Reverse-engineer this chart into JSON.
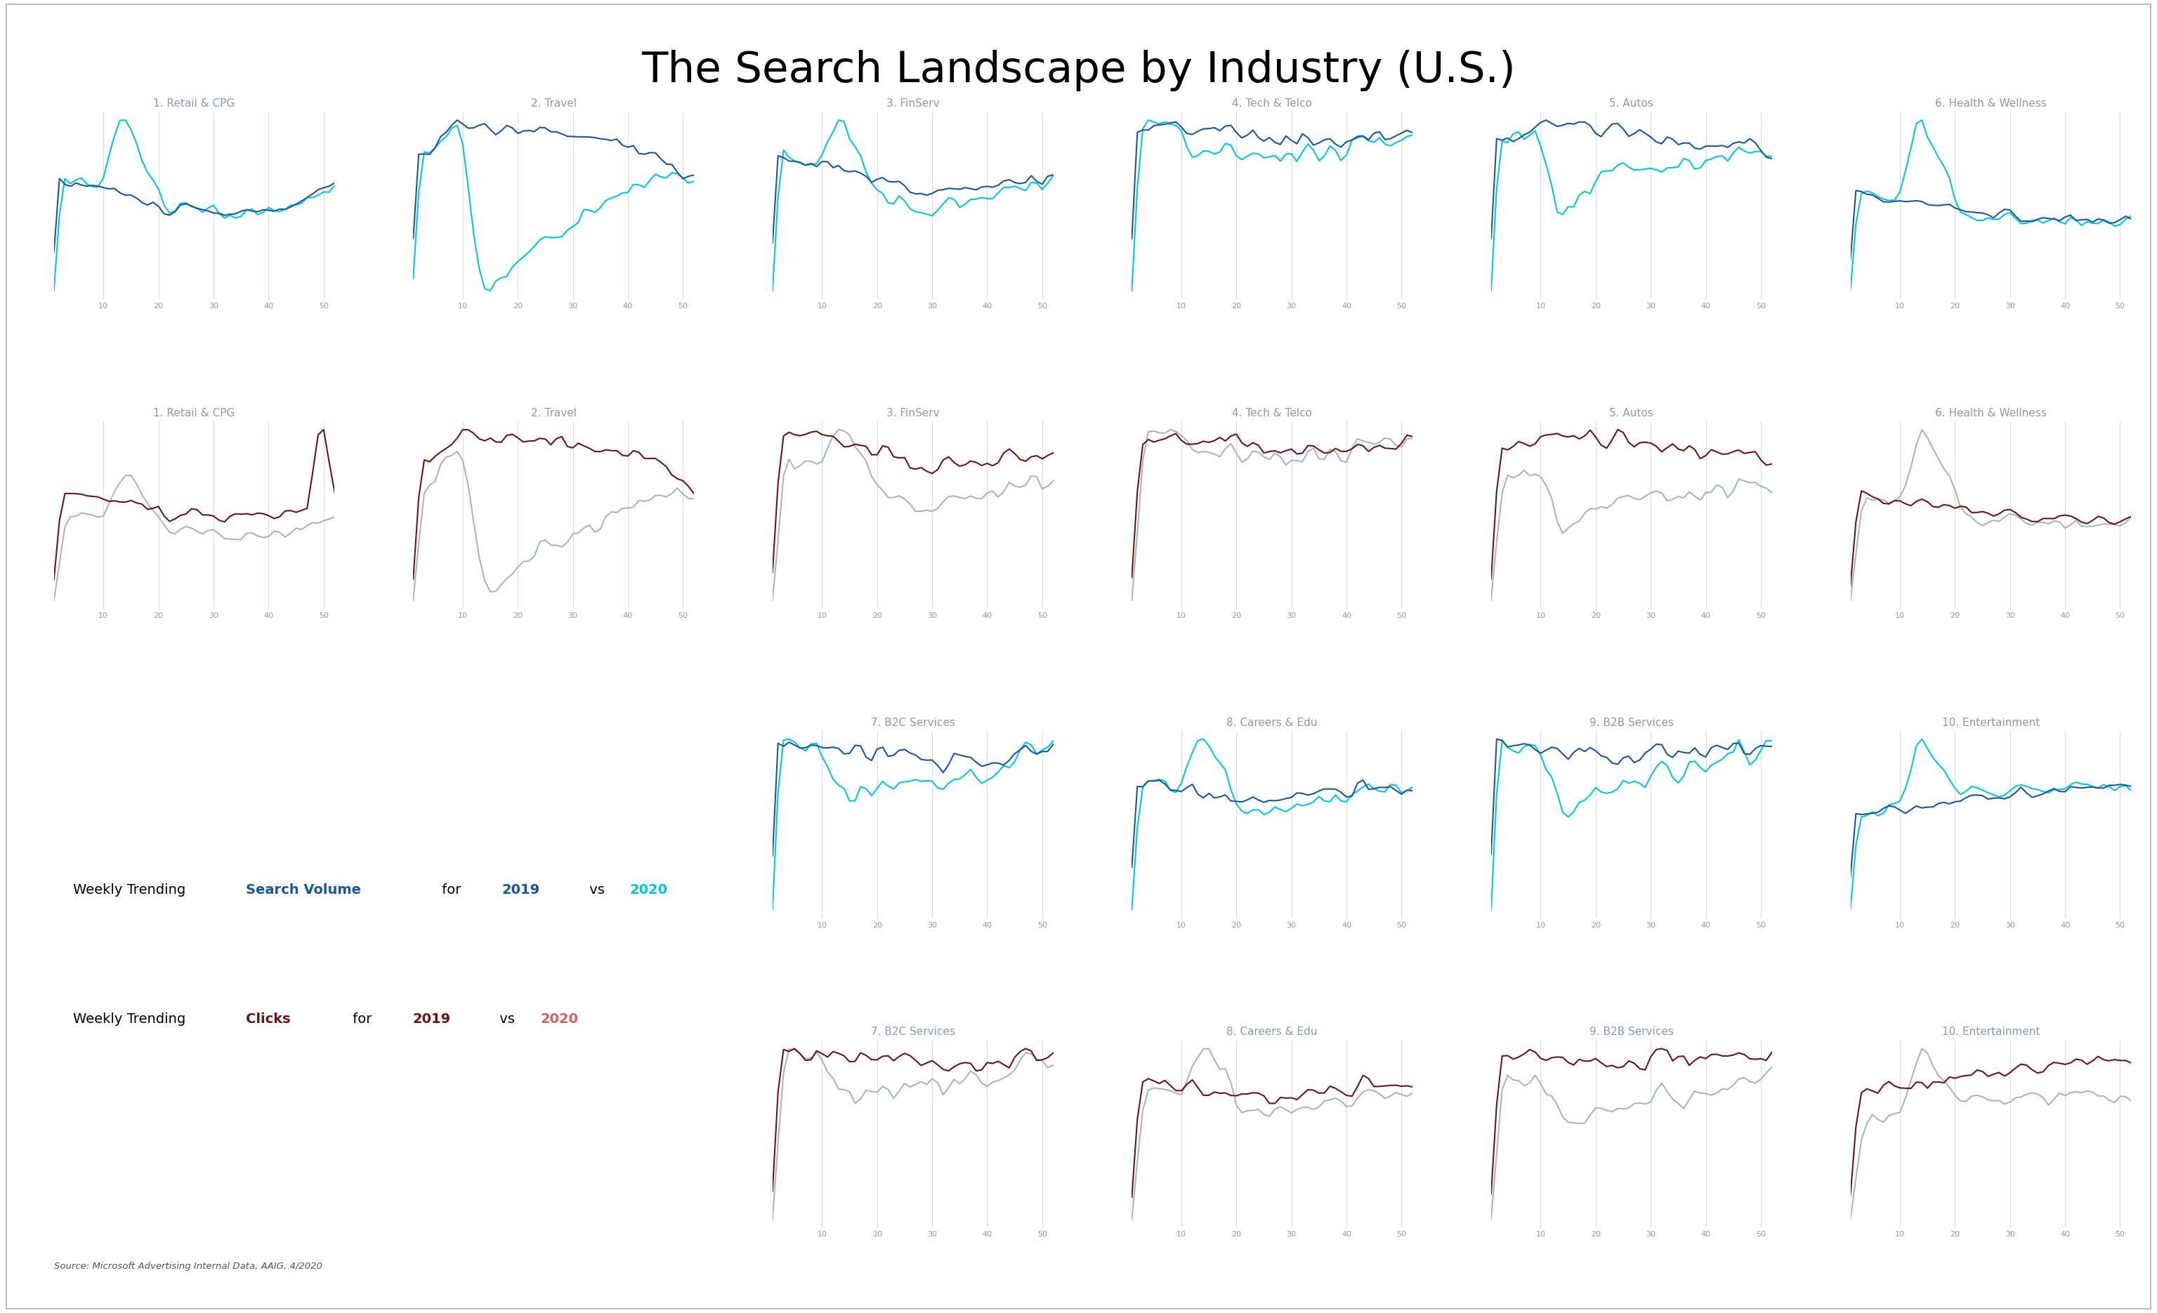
{
  "title": "The Search Landscape by Industry (U.S.)",
  "title_fontsize": 44,
  "background_color": "#ffffff",
  "source_text": "Source: Microsoft Advertising Internal Data, AAIG, 4/2020",
  "industries_top6": [
    "1. Retail & CPG",
    "2. Travel",
    "3. FinServ",
    "4. Tech & Telco",
    "5. Autos",
    "6. Health & Wellness"
  ],
  "industries_bot4": [
    "7. B2C Services",
    "8. Careers & Edu",
    "9. B2B Services",
    "10. Entertainment"
  ],
  "label_color": "#8a9bb0",
  "color_2019_search": "#1a56a0",
  "color_2020_search": "#00c8e0",
  "color_2019_clicks": "#6b1515",
  "color_2020_clicks": "#aab5c0",
  "color_2020_clicks_red": "#d46060",
  "grid_color": "#d8dde2",
  "border_color": "#c8c8c8",
  "weeks": 52
}
